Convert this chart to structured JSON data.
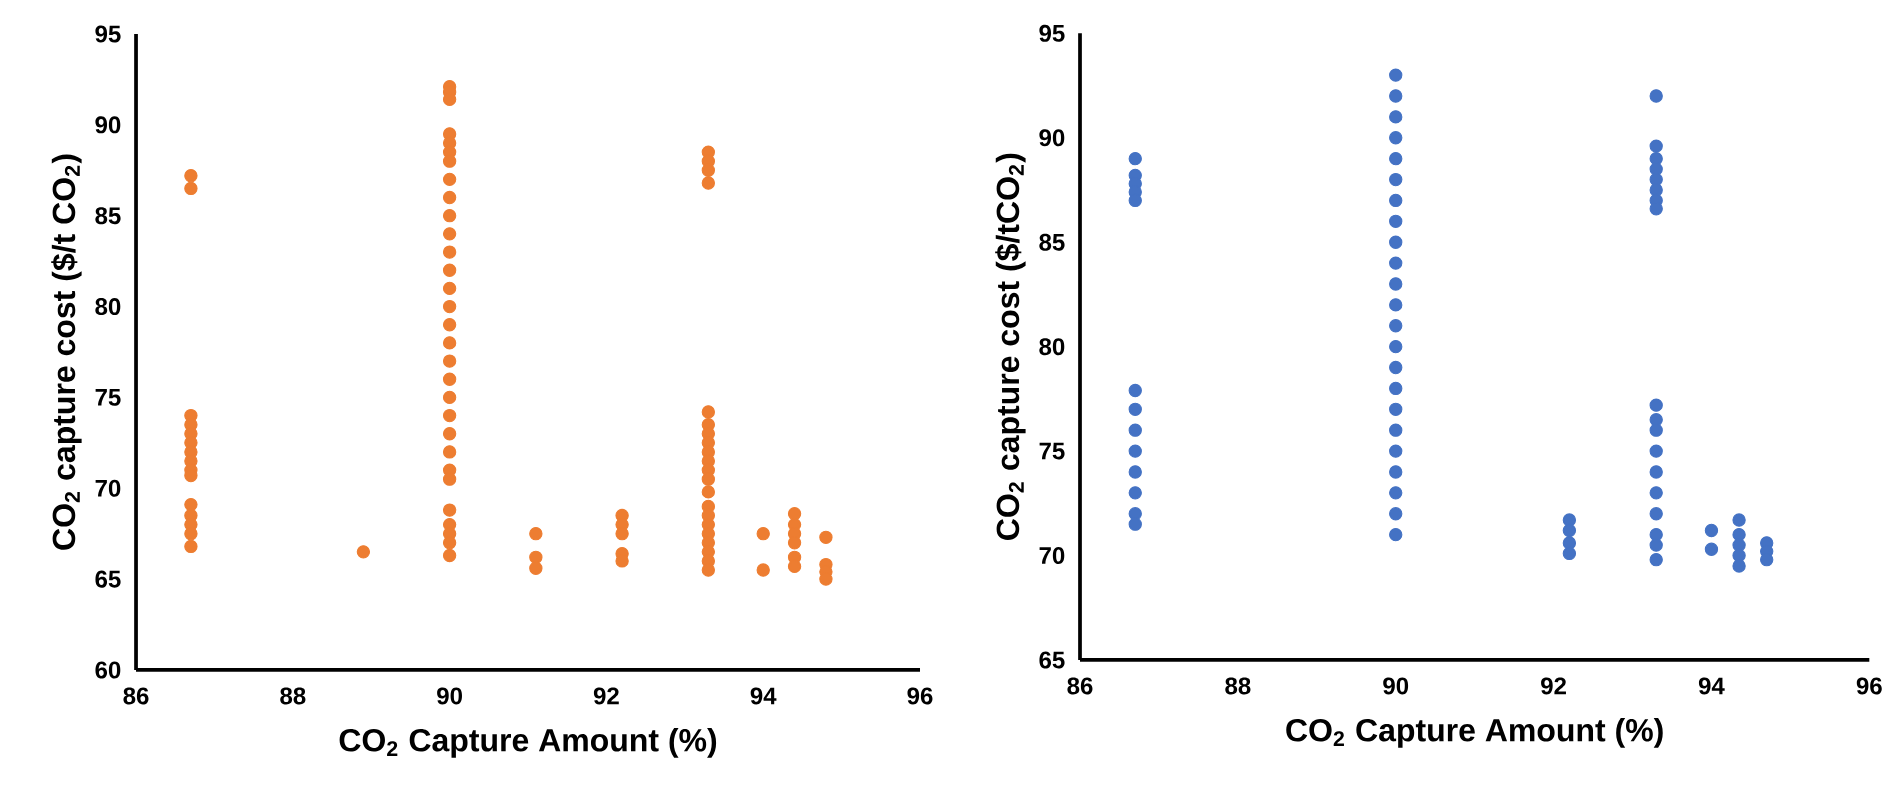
{
  "chart_data": [
    {
      "type": "scatter",
      "xlabel": "CO$_{2}$ Capture Amount (%)",
      "ylabel": "CO$_{2}$ capture cost ($/t CO$_{2}$)",
      "xlim": [
        86,
        96
      ],
      "ylim": [
        60,
        95
      ],
      "xticks": [
        86,
        88,
        90,
        92,
        94,
        96
      ],
      "yticks": [
        60,
        65,
        70,
        75,
        80,
        85,
        90,
        95
      ],
      "marker": "circle",
      "series": [
        {
          "color": "#ed7d31",
          "x": [
            86.7,
            86.7,
            86.7,
            86.7,
            86.7,
            86.7,
            86.7,
            86.7,
            86.7,
            86.7,
            86.7,
            86.7,
            86.7,
            86.7,
            86.7,
            88.9,
            90,
            90,
            90,
            90,
            90,
            90,
            90,
            90,
            90,
            90,
            90,
            90,
            90,
            90,
            90,
            90,
            90,
            90,
            90,
            90,
            90,
            90,
            90,
            90,
            90,
            90,
            90,
            90,
            90,
            90,
            91.1,
            91.1,
            91.1,
            92.2,
            92.2,
            92.2,
            92.2,
            92.2,
            93.3,
            93.3,
            93.3,
            93.3,
            93.3,
            93.3,
            93.3,
            93.3,
            93.3,
            93.3,
            93.3,
            93.3,
            93.3,
            93.3,
            93.3,
            93.3,
            93.3,
            93.3,
            93.3,
            93.3,
            93.3,
            94,
            94,
            94.4,
            94.4,
            94.4,
            94.4,
            94.4,
            94.4,
            94.8,
            94.8,
            94.8,
            94.8
          ],
          "values": [
            87.2,
            86.5,
            74,
            73.5,
            73,
            72.5,
            72,
            71.5,
            71,
            70.7,
            69.1,
            68.5,
            68,
            67.5,
            66.8,
            66.5,
            92.1,
            91.8,
            91.4,
            89.5,
            89,
            88.5,
            88,
            87,
            86,
            85,
            84,
            83,
            82,
            81,
            80,
            79,
            78,
            77,
            76,
            75,
            74,
            73,
            72,
            71,
            70.5,
            68.8,
            68,
            67.5,
            67,
            66.3,
            67.5,
            66.2,
            65.6,
            68.5,
            68,
            67.5,
            66.4,
            66,
            88.5,
            88,
            87.5,
            86.8,
            74.2,
            73.5,
            73,
            72.5,
            72,
            71.5,
            71,
            70.5,
            69.8,
            69,
            68.5,
            68,
            67.5,
            67,
            66.5,
            66,
            65.5,
            67.5,
            65.5,
            68.6,
            68,
            67.5,
            67,
            66.2,
            65.7,
            67.3,
            65.8,
            65.4,
            65
          ]
        }
      ]
    },
    {
      "type": "scatter",
      "xlabel": "CO$_{2}$ Capture Amount (%)",
      "ylabel": "CO$_{2}$ capture cost ($/tCO$_{2}$)",
      "xlim": [
        86,
        96
      ],
      "ylim": [
        65,
        95
      ],
      "xticks": [
        86,
        88,
        90,
        92,
        94,
        96
      ],
      "yticks": [
        65,
        70,
        75,
        80,
        85,
        90,
        95
      ],
      "marker": "circle",
      "series": [
        {
          "color": "#4472c4",
          "x": [
            86.7,
            86.7,
            86.7,
            86.7,
            86.7,
            86.7,
            86.7,
            86.7,
            86.7,
            86.7,
            86.7,
            86.7,
            86.7,
            90,
            90,
            90,
            90,
            90,
            90,
            90,
            90,
            90,
            90,
            90,
            90,
            90,
            90,
            90,
            90,
            90,
            90,
            90,
            90,
            90,
            90,
            90,
            92.2,
            92.2,
            92.2,
            92.2,
            93.3,
            93.3,
            93.3,
            93.3,
            93.3,
            93.3,
            93.3,
            93.3,
            93.3,
            93.3,
            93.3,
            93.3,
            93.3,
            93.3,
            93.3,
            93.3,
            93.3,
            93.3,
            94,
            94,
            94.35,
            94.35,
            94.35,
            94.35,
            94.35,
            94.7,
            94.7,
            94.7
          ],
          "values": [
            89,
            88.2,
            87.8,
            87.4,
            87,
            77.9,
            77,
            76,
            75,
            74,
            73,
            72,
            71.5,
            93,
            92,
            91,
            90,
            89,
            88,
            87,
            86,
            85,
            84,
            83,
            82,
            81,
            80,
            79,
            78,
            77,
            76,
            75,
            74,
            73,
            72,
            71,
            71.7,
            71.2,
            70.6,
            70.1,
            92,
            89.6,
            89,
            88.5,
            88,
            87.5,
            87,
            86.6,
            77.2,
            76.5,
            76,
            75,
            74,
            73,
            72,
            71,
            70.5,
            69.8,
            71.2,
            70.3,
            71.7,
            71,
            70.5,
            70,
            69.5,
            70.6,
            70.2,
            69.8
          ]
        }
      ]
    }
  ]
}
